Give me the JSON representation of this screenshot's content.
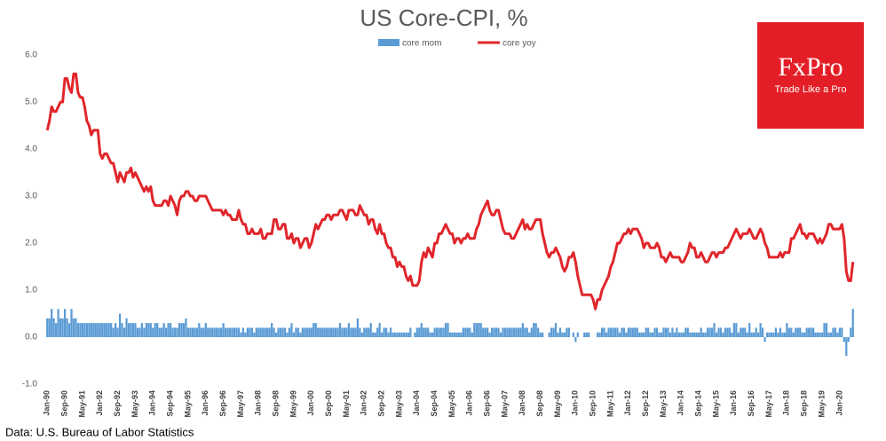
{
  "chart_data": {
    "type": "bar-line",
    "title": "US Core-CPI, %",
    "source": "Data: U.S. Bureau of Labor Statistics",
    "logo": {
      "brand": "FxPro",
      "tagline": "Trade Like a Pro"
    },
    "ylim": [
      -1,
      6
    ],
    "yticks": [
      {
        "value": -1,
        "label": "-1.0"
      },
      {
        "value": 0,
        "label": "0.0"
      },
      {
        "value": 1,
        "label": "1.0"
      },
      {
        "value": 2,
        "label": "2.0"
      },
      {
        "value": 3,
        "label": "3.0"
      },
      {
        "value": 4,
        "label": "4.0"
      },
      {
        "value": 5,
        "label": "5.0"
      },
      {
        "value": 6,
        "label": "6.0"
      }
    ],
    "grid": false,
    "categories": [
      "Jan-90",
      null,
      null,
      null,
      null,
      null,
      null,
      null,
      "Sep-90",
      null,
      null,
      null,
      null,
      null,
      null,
      null,
      "May-91",
      null,
      null,
      null,
      null,
      null,
      null,
      null,
      "Jan-92",
      null,
      null,
      null,
      null,
      null,
      null,
      null,
      "Sep-92",
      null,
      null,
      null,
      null,
      null,
      null,
      null,
      "May-93",
      null,
      null,
      null,
      null,
      null,
      null,
      null,
      "Jan-94",
      null,
      null,
      null,
      null,
      null,
      null,
      null,
      "Sep-94",
      null,
      null,
      null,
      null,
      null,
      null,
      null,
      "May-95",
      null,
      null,
      null,
      null,
      null,
      null,
      null,
      "Jan-96",
      null,
      null,
      null,
      null,
      null,
      null,
      null,
      "Sep-96",
      null,
      null,
      null,
      null,
      null,
      null,
      null,
      "May-97",
      null,
      null,
      null,
      null,
      null,
      null,
      null,
      "Jan-98",
      null,
      null,
      null,
      null,
      null,
      null,
      null,
      "Sep-98",
      null,
      null,
      null,
      null,
      null,
      null,
      null,
      "May-99",
      null,
      null,
      null,
      null,
      null,
      null,
      null,
      "Jan-00",
      null,
      null,
      null,
      null,
      null,
      null,
      null,
      "Sep-00",
      null,
      null,
      null,
      null,
      null,
      null,
      null,
      "May-01",
      null,
      null,
      null,
      null,
      null,
      null,
      null,
      "Jan-02",
      null,
      null,
      null,
      null,
      null,
      null,
      null,
      "Sep-02",
      null,
      null,
      null,
      null,
      null,
      null,
      null,
      "May-03",
      null,
      null,
      null,
      null,
      null,
      null,
      null,
      "Jan-04",
      null,
      null,
      null,
      null,
      null,
      null,
      null,
      "Sep-04",
      null,
      null,
      null,
      null,
      null,
      null,
      null,
      "May-05",
      null,
      null,
      null,
      null,
      null,
      null,
      null,
      "Jan-06",
      null,
      null,
      null,
      null,
      null,
      null,
      null,
      "Sep-06",
      null,
      null,
      null,
      null,
      null,
      null,
      null,
      "May-07",
      null,
      null,
      null,
      null,
      null,
      null,
      null,
      "Jan-08",
      null,
      null,
      null,
      null,
      null,
      null,
      null,
      "Sep-08",
      null,
      null,
      null,
      null,
      null,
      null,
      null,
      "May-09",
      null,
      null,
      null,
      null,
      null,
      null,
      null,
      "Jan-10",
      null,
      null,
      null,
      null,
      null,
      null,
      null,
      "Sep-10",
      null,
      null,
      null,
      null,
      null,
      null,
      null,
      "May-11",
      null,
      null,
      null,
      null,
      null,
      null,
      null,
      "Jan-12",
      null,
      null,
      null,
      null,
      null,
      null,
      null,
      "Sep-12",
      null,
      null,
      null,
      null,
      null,
      null,
      null,
      "May-13",
      null,
      null,
      null,
      null,
      null,
      null,
      null,
      "Jan-14",
      null,
      null,
      null,
      null,
      null,
      null,
      null,
      "Sep-14",
      null,
      null,
      null,
      null,
      null,
      null,
      null,
      "May-15",
      null,
      null,
      null,
      null,
      null,
      null,
      null,
      "Jan-16",
      null,
      null,
      null,
      null,
      null,
      null,
      null,
      "Sep-16",
      null,
      null,
      null,
      null,
      null,
      null,
      null,
      "May-17",
      null,
      null,
      null,
      null,
      null,
      null,
      null,
      "Jan-18",
      null,
      null,
      null,
      null,
      null,
      null,
      null,
      "Sep-18",
      null,
      null,
      null,
      null,
      null,
      null,
      null,
      "May-19",
      null,
      null,
      null,
      null,
      null,
      null,
      null,
      "Jan-20",
      null,
      null,
      null,
      null,
      null,
      null
    ],
    "series": [
      {
        "name": "core mom",
        "type": "bar",
        "color": "#5b9bd5",
        "values": [
          0.4,
          0.4,
          0.6,
          0.4,
          0.3,
          0.6,
          0.4,
          0.4,
          0.6,
          0.4,
          0.3,
          0.6,
          0.4,
          0.4,
          0.3,
          0.3,
          0.3,
          0.3,
          0.3,
          0.3,
          0.3,
          0.3,
          0.3,
          0.3,
          0.3,
          0.3,
          0.3,
          0.3,
          0.3,
          0.3,
          0.2,
          0.3,
          0.2,
          0.5,
          0.3,
          0.2,
          0.4,
          0.3,
          0.3,
          0.3,
          0.3,
          0.2,
          0.2,
          0.3,
          0.2,
          0.3,
          0.3,
          0.3,
          0.2,
          0.3,
          0.3,
          0.2,
          0.2,
          0.3,
          0.2,
          0.3,
          0.3,
          0.2,
          0.2,
          0.2,
          0.3,
          0.3,
          0.3,
          0.4,
          0.2,
          0.2,
          0.2,
          0.2,
          0.2,
          0.3,
          0.2,
          0.2,
          0.3,
          0.2,
          0.2,
          0.2,
          0.2,
          0.2,
          0.2,
          0.2,
          0.3,
          0.2,
          0.2,
          0.2,
          0.2,
          0.2,
          0.2,
          0.2,
          0.1,
          0.2,
          0.1,
          0.2,
          0.2,
          0.2,
          0.1,
          0.2,
          0.2,
          0.2,
          0.2,
          0.2,
          0.2,
          0.2,
          0.3,
          0.2,
          0.1,
          0.2,
          0.2,
          0.2,
          0.2,
          0.1,
          0.2,
          0.3,
          0.1,
          0.2,
          0.2,
          0.1,
          0.2,
          0.2,
          0.2,
          0.2,
          0.2,
          0.3,
          0.3,
          0.2,
          0.2,
          0.2,
          0.2,
          0.2,
          0.2,
          0.2,
          0.2,
          0.2,
          0.2,
          0.3,
          0.2,
          0.2,
          0.2,
          0.3,
          0.2,
          0.2,
          0.2,
          0.4,
          0.2,
          0.1,
          0.2,
          0.2,
          0.2,
          0.3,
          0.1,
          0.1,
          0.2,
          0.3,
          0.1,
          0.2,
          0.2,
          0.1,
          0.2,
          0.1,
          0.1,
          0.1,
          0.1,
          0.1,
          0.1,
          0.1,
          0.1,
          0.2,
          0.0,
          0.1,
          0.2,
          0.2,
          0.3,
          0.2,
          0.2,
          0.2,
          0.1,
          0.1,
          0.2,
          0.2,
          0.2,
          0.2,
          0.2,
          0.3,
          0.3,
          0.1,
          0.1,
          0.1,
          0.1,
          0.1,
          0.1,
          0.2,
          0.2,
          0.2,
          0.2,
          0.1,
          0.3,
          0.3,
          0.3,
          0.3,
          0.2,
          0.2,
          0.2,
          0.1,
          0.2,
          0.2,
          0.2,
          0.2,
          0.1,
          0.2,
          0.2,
          0.2,
          0.2,
          0.2,
          0.2,
          0.2,
          0.2,
          0.2,
          0.3,
          0.2,
          0.2,
          0.1,
          0.2,
          0.3,
          0.3,
          0.2,
          0.1,
          0.1,
          0.0,
          0.0,
          0.1,
          0.2,
          0.2,
          0.3,
          0.1,
          0.2,
          0.1,
          0.1,
          0.2,
          0.2,
          0.0,
          0.1,
          -0.1,
          0.1,
          0.0,
          0.0,
          0.1,
          0.1,
          0.1,
          0.0,
          0.0,
          0.0,
          0.1,
          0.1,
          0.2,
          0.2,
          0.1,
          0.2,
          0.2,
          0.2,
          0.2,
          0.2,
          0.1,
          0.2,
          0.2,
          0.1,
          0.2,
          0.2,
          0.2,
          0.2,
          0.2,
          0.1,
          0.1,
          0.1,
          0.2,
          0.2,
          0.1,
          0.1,
          0.2,
          0.2,
          0.1,
          0.1,
          0.2,
          0.2,
          0.2,
          0.1,
          0.2,
          0.1,
          0.2,
          0.1,
          0.1,
          0.1,
          0.2,
          0.2,
          0.1,
          0.1,
          0.1,
          0.1,
          0.1,
          0.2,
          0.1,
          0.1,
          0.2,
          0.2,
          0.2,
          0.3,
          0.1,
          0.2,
          0.2,
          0.1,
          0.2,
          0.2,
          0.2,
          0.1,
          0.3,
          0.3,
          0.1,
          0.2,
          0.2,
          0.2,
          0.1,
          0.3,
          0.1,
          0.1,
          0.2,
          0.1,
          0.3,
          0.2,
          -0.1,
          0.1,
          0.1,
          0.1,
          0.1,
          0.2,
          0.1,
          0.2,
          0.1,
          0.1,
          0.3,
          0.2,
          0.2,
          0.1,
          0.2,
          0.2,
          0.2,
          0.1,
          0.1,
          0.2,
          0.2,
          0.2,
          0.2,
          0.1,
          0.1,
          0.1,
          0.1,
          0.3,
          0.3,
          0.1,
          0.1,
          0.2,
          0.2,
          0.1,
          0.2,
          0.2,
          -0.1,
          -0.4,
          -0.1,
          0.2,
          0.6
        ]
      },
      {
        "name": "core yoy",
        "type": "line",
        "color": "#e0262b",
        "values": [
          4.4,
          4.6,
          4.9,
          4.8,
          4.8,
          4.9,
          5.0,
          5.0,
          5.5,
          5.5,
          5.3,
          5.2,
          5.6,
          5.6,
          5.2,
          5.1,
          5.1,
          4.9,
          4.6,
          4.5,
          4.3,
          4.4,
          4.4,
          4.4,
          3.9,
          3.8,
          3.9,
          3.9,
          3.8,
          3.7,
          3.7,
          3.5,
          3.3,
          3.5,
          3.4,
          3.3,
          3.5,
          3.5,
          3.6,
          3.4,
          3.5,
          3.4,
          3.3,
          3.2,
          3.1,
          3.2,
          3.1,
          3.2,
          2.9,
          2.8,
          2.8,
          2.8,
          2.8,
          2.9,
          2.9,
          2.8,
          3.0,
          2.9,
          2.8,
          2.6,
          2.9,
          3.0,
          3.0,
          3.1,
          3.1,
          3.0,
          3.0,
          2.9,
          2.9,
          3.0,
          3.0,
          3.0,
          3.0,
          2.9,
          2.8,
          2.7,
          2.7,
          2.7,
          2.7,
          2.7,
          2.6,
          2.7,
          2.6,
          2.6,
          2.5,
          2.5,
          2.5,
          2.7,
          2.5,
          2.4,
          2.4,
          2.2,
          2.2,
          2.3,
          2.2,
          2.2,
          2.2,
          2.3,
          2.1,
          2.1,
          2.2,
          2.2,
          2.2,
          2.5,
          2.5,
          2.3,
          2.3,
          2.4,
          2.4,
          2.1,
          2.1,
          2.2,
          2.0,
          2.1,
          2.1,
          1.9,
          2.0,
          2.1,
          2.1,
          1.9,
          2.0,
          2.2,
          2.4,
          2.3,
          2.4,
          2.5,
          2.5,
          2.6,
          2.6,
          2.5,
          2.6,
          2.6,
          2.6,
          2.7,
          2.7,
          2.6,
          2.5,
          2.7,
          2.7,
          2.7,
          2.6,
          2.6,
          2.8,
          2.7,
          2.6,
          2.6,
          2.4,
          2.5,
          2.5,
          2.3,
          2.2,
          2.4,
          2.2,
          2.2,
          2.0,
          1.9,
          1.9,
          1.7,
          1.7,
          1.5,
          1.6,
          1.5,
          1.5,
          1.3,
          1.2,
          1.3,
          1.1,
          1.1,
          1.1,
          1.2,
          1.6,
          1.8,
          1.7,
          1.9,
          1.8,
          1.7,
          2.0,
          2.0,
          2.2,
          2.2,
          2.3,
          2.4,
          2.3,
          2.2,
          2.2,
          2.0,
          2.1,
          2.1,
          2.0,
          2.1,
          2.1,
          2.2,
          2.1,
          2.1,
          2.1,
          2.3,
          2.4,
          2.6,
          2.7,
          2.8,
          2.9,
          2.7,
          2.6,
          2.6,
          2.7,
          2.7,
          2.5,
          2.3,
          2.2,
          2.2,
          2.2,
          2.1,
          2.1,
          2.2,
          2.3,
          2.4,
          2.5,
          2.3,
          2.4,
          2.3,
          2.3,
          2.4,
          2.5,
          2.5,
          2.5,
          2.2,
          2.0,
          1.8,
          1.7,
          1.8,
          1.8,
          1.9,
          1.8,
          1.7,
          1.5,
          1.4,
          1.5,
          1.7,
          1.7,
          1.8,
          1.6,
          1.3,
          1.1,
          0.9,
          0.9,
          0.9,
          0.9,
          0.9,
          0.8,
          0.6,
          0.8,
          0.8,
          1.0,
          1.1,
          1.2,
          1.3,
          1.5,
          1.6,
          1.8,
          2.0,
          2.0,
          2.1,
          2.2,
          2.2,
          2.3,
          2.2,
          2.3,
          2.3,
          2.3,
          2.2,
          2.1,
          1.9,
          2.0,
          2.0,
          1.9,
          1.9,
          1.9,
          2.0,
          1.9,
          1.7,
          1.7,
          1.6,
          1.7,
          1.8,
          1.7,
          1.7,
          1.7,
          1.7,
          1.6,
          1.6,
          1.7,
          1.8,
          2.0,
          1.9,
          1.9,
          1.7,
          1.7,
          1.8,
          1.7,
          1.6,
          1.6,
          1.7,
          1.8,
          1.8,
          1.7,
          1.8,
          1.8,
          1.8,
          1.9,
          1.9,
          2.0,
          2.1,
          2.2,
          2.3,
          2.2,
          2.1,
          2.2,
          2.2,
          2.2,
          2.3,
          2.2,
          2.1,
          2.1,
          2.2,
          2.3,
          2.2,
          2.0,
          1.9,
          1.7,
          1.7,
          1.7,
          1.7,
          1.7,
          1.8,
          1.7,
          1.8,
          1.8,
          1.8,
          2.1,
          2.1,
          2.2,
          2.3,
          2.4,
          2.2,
          2.2,
          2.1,
          2.2,
          2.2,
          2.2,
          2.1,
          2.0,
          2.1,
          2.0,
          2.1,
          2.2,
          2.4,
          2.4,
          2.3,
          2.3,
          2.3,
          2.3,
          2.4,
          2.1,
          1.4,
          1.2,
          1.2,
          1.6
        ]
      }
    ]
  }
}
